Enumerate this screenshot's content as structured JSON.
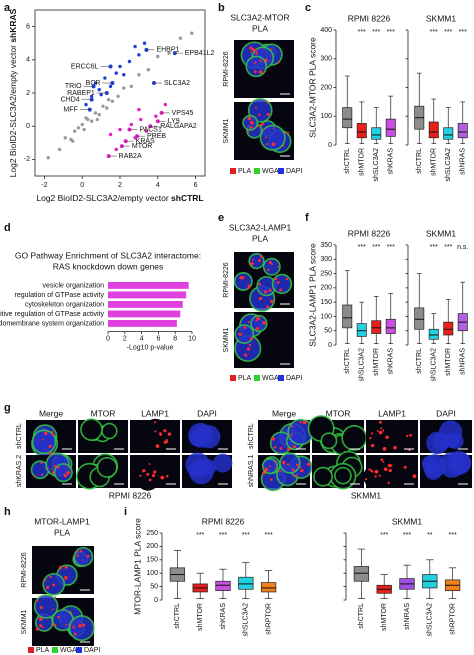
{
  "panel_labels": [
    "a",
    "b",
    "c",
    "d",
    "e",
    "f",
    "g",
    "h",
    "i"
  ],
  "chart_data": [
    {
      "type": "scatter",
      "xlabel": "Log2 BioID2-SLC3A2/empty vector",
      "xlabel_bold": "shCTRL",
      "ylabel": "Log2 BioID2-SLC3A2/empty vector",
      "ylabel_bold": "shKRAS",
      "xlim": [
        -2.5,
        6.5
      ],
      "xticks": [
        -2,
        0,
        2,
        4,
        6
      ],
      "ylim": [
        -3,
        7
      ],
      "yticks": [
        -2,
        0,
        2,
        4,
        6
      ],
      "series": [
        {
          "color": "#9a9a9a",
          "x": [
            -1.8,
            -1.2,
            -0.9,
            -0.6,
            -0.4,
            -0.2,
            0,
            0.1,
            0.3,
            0.5,
            0.7,
            0.9,
            1.1,
            1.3,
            1.6,
            1.9,
            2.2,
            2.6,
            3.0,
            3.5,
            4.0,
            4.6,
            5.2,
            5.8,
            -0.5,
            0.2,
            0.8,
            1.4
          ],
          "values": [
            -1.9,
            -1.4,
            -0.7,
            -0.8,
            -0.3,
            -0.1,
            0.1,
            -0.2,
            0.4,
            0.3,
            0.8,
            0.7,
            1.2,
            1.1,
            1.5,
            1.8,
            2.3,
            2.4,
            3.1,
            3.4,
            4.2,
            4.4,
            5.3,
            5.6,
            -0.9,
            0.5,
            0.4,
            1.6
          ]
        },
        {
          "color": "#1f3fd0",
          "x": [
            0.2,
            0.5,
            0.9,
            1.2,
            1.8,
            2.0,
            2.5,
            3.0,
            1.0,
            2.8,
            3.3,
            0.7,
            1.5,
            2.2
          ],
          "values": [
            1.3,
            1.8,
            2.2,
            2.9,
            3.2,
            3.6,
            3.9,
            4.3,
            1.9,
            4.8,
            5.0,
            2.6,
            2.4,
            3.1
          ]
        },
        {
          "color": "#e020c0",
          "x": [
            1.5,
            2.0,
            2.6,
            3.1,
            3.4,
            3.9,
            4.4,
            2.8,
            1.8,
            3.0
          ],
          "values": [
            -0.5,
            -0.2,
            0.1,
            0.4,
            -0.3,
            0.6,
            1.3,
            -0.7,
            -1.4,
            1.0
          ]
        }
      ],
      "annotations": [
        {
          "text": "EHBP1",
          "x": 3.4,
          "y": 4.6,
          "color": "#1f3fd0"
        },
        {
          "text": "EPB41L2",
          "x": 4.9,
          "y": 4.4,
          "color": "#1f3fd0"
        },
        {
          "text": "ERCC6L",
          "x": 1.5,
          "y": 3.6,
          "color": "#1f3fd0"
        },
        {
          "text": "BCR",
          "x": 1.6,
          "y": 2.6,
          "color": "#1f3fd0"
        },
        {
          "text": "SLC3A2",
          "x": 3.8,
          "y": 2.6,
          "color": "#1f3fd0"
        },
        {
          "text": "TRIO",
          "x": 0.6,
          "y": 2.4,
          "color": "#1f3fd0"
        },
        {
          "text": "RABEP1",
          "x": 1.3,
          "y": 2.0,
          "color": "#1f3fd0"
        },
        {
          "text": "CHD4",
          "x": 0.5,
          "y": 1.6,
          "color": "#1f3fd0"
        },
        {
          "text": "MFF",
          "x": 0.4,
          "y": 1.0,
          "color": "#1f3fd0"
        },
        {
          "text": "VPS45",
          "x": 4.2,
          "y": 0.8,
          "color": "#e020c0"
        },
        {
          "text": "LY9",
          "x": 4.0,
          "y": 0.3,
          "color": "#e020c0"
        },
        {
          "text": "RALGAPA2",
          "x": 3.6,
          "y": 0.0,
          "color": "#e020c0"
        },
        {
          "text": "PACS1",
          "x": 2.5,
          "y": -0.2,
          "color": "#e020c0"
        },
        {
          "text": "PREB",
          "x": 2.9,
          "y": -0.6,
          "color": "#e020c0"
        },
        {
          "text": "KRAS",
          "x": 2.3,
          "y": -0.9,
          "color": "#e020c0"
        },
        {
          "text": "MTOR",
          "x": 2.1,
          "y": -1.2,
          "color": "#e020c0"
        },
        {
          "text": "RAB2A",
          "x": 1.4,
          "y": -1.8,
          "color": "#e020c0"
        }
      ]
    },
    {
      "type": "box",
      "ylabel": "SLC3A2-MTOR PLA score",
      "ylim": [
        0,
        400
      ],
      "yticks": [
        0,
        100,
        200,
        300,
        400
      ],
      "groups": [
        {
          "title": "RPMI 8226",
          "categories": [
            "shCTRL",
            "shMTOR",
            "shSLC3A2",
            "shKRAS"
          ],
          "colors": [
            "#8c8c8c",
            "#e8201c",
            "#22d0e0",
            "#c850e0"
          ],
          "boxes": [
            [
              5,
              60,
              90,
              130,
              240
            ],
            [
              5,
              25,
              45,
              75,
              150
            ],
            [
              5,
              20,
              35,
              60,
              130
            ],
            [
              5,
              30,
              55,
              90,
              170
            ]
          ],
          "significance": [
            "***",
            "***",
            "***"
          ]
        },
        {
          "title": "SKMM1",
          "categories": [
            "shCTRL",
            "shMTOR",
            "shSLC3A2",
            "shNRAS"
          ],
          "colors": [
            "#8c8c8c",
            "#e8201c",
            "#22d0e0",
            "#b060e0"
          ],
          "boxes": [
            [
              5,
              55,
              95,
              135,
              250
            ],
            [
              5,
              25,
              45,
              80,
              160
            ],
            [
              5,
              20,
              35,
              60,
              130
            ],
            [
              5,
              25,
              45,
              75,
              150
            ]
          ],
          "significance": [
            "***",
            "***",
            "***"
          ]
        }
      ]
    },
    {
      "type": "barh",
      "title": [
        "GO Pathway Enrichment of SLC3A2 interactome:",
        "RAS knockdown down genes"
      ],
      "categories": [
        "vesicle organization",
        "regulation of GTPase activity",
        "cytoskeleton organization",
        "positive regulation of GTPase activity",
        "endomembrane system organization"
      ],
      "values": [
        9.6,
        9.3,
        8.9,
        8.6,
        8.2
      ],
      "color": "#e040e0",
      "xlim": [
        0,
        10
      ],
      "xticks": [
        0,
        2,
        4,
        6,
        8,
        10
      ],
      "xlabel": "-Log10 p-value"
    },
    {
      "type": "box",
      "ylabel": "SLC3A2-LAMP1 PLA score",
      "ylim": [
        0,
        350
      ],
      "yticks": [
        0,
        50,
        100,
        150,
        200,
        250,
        300,
        350
      ],
      "groups": [
        {
          "title": "RPMI 8226",
          "categories": [
            "shCTRL",
            "shSLC3A2",
            "shMTOR",
            "shKRAS"
          ],
          "colors": [
            "#8c8c8c",
            "#22d0e0",
            "#e8201c",
            "#c850e0"
          ],
          "boxes": [
            [
              5,
              60,
              95,
              140,
              260
            ],
            [
              5,
              30,
              50,
              75,
              150
            ],
            [
              5,
              40,
              60,
              85,
              170
            ],
            [
              5,
              40,
              60,
              90,
              180
            ]
          ],
          "significance": [
            "***",
            "***",
            "***"
          ]
        },
        {
          "title": "SKMM1",
          "categories": [
            "shCTRL",
            "shSLC3A2",
            "shMTOR",
            "shNRAS"
          ],
          "colors": [
            "#8c8c8c",
            "#22d0e0",
            "#e8201c",
            "#b060e0"
          ],
          "boxes": [
            [
              5,
              55,
              90,
              130,
              250
            ],
            [
              5,
              20,
              35,
              55,
              110
            ],
            [
              5,
              35,
              55,
              80,
              160
            ],
            [
              5,
              50,
              80,
              110,
              220
            ]
          ],
          "significance": [
            "***",
            "***",
            "n.s."
          ]
        }
      ]
    },
    {
      "type": "box",
      "ylabel": "MTOR-LAMP1 PLA score",
      "ylim": [
        0,
        250
      ],
      "yticks": [
        0,
        50,
        100,
        150,
        200,
        250
      ],
      "groups": [
        {
          "title": "RPMI 8226",
          "categories": [
            "shCTRL",
            "shMTOR",
            "shKRAS",
            "shSLC3A2",
            "shRPTOR"
          ],
          "colors": [
            "#8c8c8c",
            "#e8201c",
            "#c850e0",
            "#22d0e0",
            "#f08020"
          ],
          "boxes": [
            [
              5,
              70,
              95,
              120,
              185
            ],
            [
              5,
              30,
              45,
              60,
              100
            ],
            [
              5,
              35,
              55,
              70,
              115
            ],
            [
              5,
              40,
              60,
              85,
              140
            ],
            [
              5,
              30,
              45,
              65,
              110
            ]
          ],
          "significance": [
            "***",
            "***",
            "***",
            "***"
          ]
        },
        {
          "title": "SKMM1",
          "categories": [
            "shCTRL",
            "shMTOR",
            "shNRAS",
            "shSLC3A2",
            "shRPTOR"
          ],
          "colors": [
            "#8c8c8c",
            "#e8201c",
            "#a050e0",
            "#22d0e0",
            "#f08020"
          ],
          "boxes": [
            [
              5,
              70,
              100,
              125,
              190
            ],
            [
              5,
              25,
              40,
              55,
              95
            ],
            [
              5,
              40,
              60,
              80,
              130
            ],
            [
              5,
              45,
              70,
              95,
              150
            ],
            [
              5,
              35,
              55,
              75,
              120
            ]
          ],
          "significance": [
            "***",
            "***",
            "**",
            "***"
          ]
        }
      ]
    }
  ],
  "images": {
    "b": {
      "title": [
        "SLC3A2-MTOR",
        "PLA"
      ],
      "rows": [
        "RPMI-8226",
        "SKMM1"
      ],
      "legend": [
        {
          "label": "PLA",
          "color": "#e02020"
        },
        {
          "label": "WGA",
          "color": "#30d030"
        },
        {
          "label": "DAPI",
          "color": "#2030e0"
        }
      ]
    },
    "e": {
      "title": [
        "SLC3A2-LAMP1",
        "PLA"
      ],
      "rows": [
        "RPMI-8226",
        "SKMM1"
      ],
      "legend": [
        {
          "label": "PLA",
          "color": "#e02020"
        },
        {
          "label": "WGA",
          "color": "#30d030"
        },
        {
          "label": "DAPI",
          "color": "#2030e0"
        }
      ]
    },
    "h": {
      "title": [
        "MTOR-LAMP1",
        "PLA"
      ],
      "rows": [
        "RPMI-8226",
        "SKMM1"
      ],
      "legend": [
        {
          "label": "PLA",
          "color": "#e02020"
        },
        {
          "label": "WGA",
          "color": "#30d030"
        },
        {
          "label": "DAPI",
          "color": "#2030e0"
        }
      ]
    },
    "g": {
      "columns": [
        "Merge",
        "MTOR",
        "LAMP1",
        "DAPI"
      ],
      "panels": [
        {
          "rows": [
            "shCTRL",
            "shKRAS.2"
          ],
          "caption": "RPMI 8226"
        },
        {
          "rows": [
            "shCTRL",
            "shNRAS.1"
          ],
          "caption": "SKMM1"
        }
      ]
    }
  }
}
